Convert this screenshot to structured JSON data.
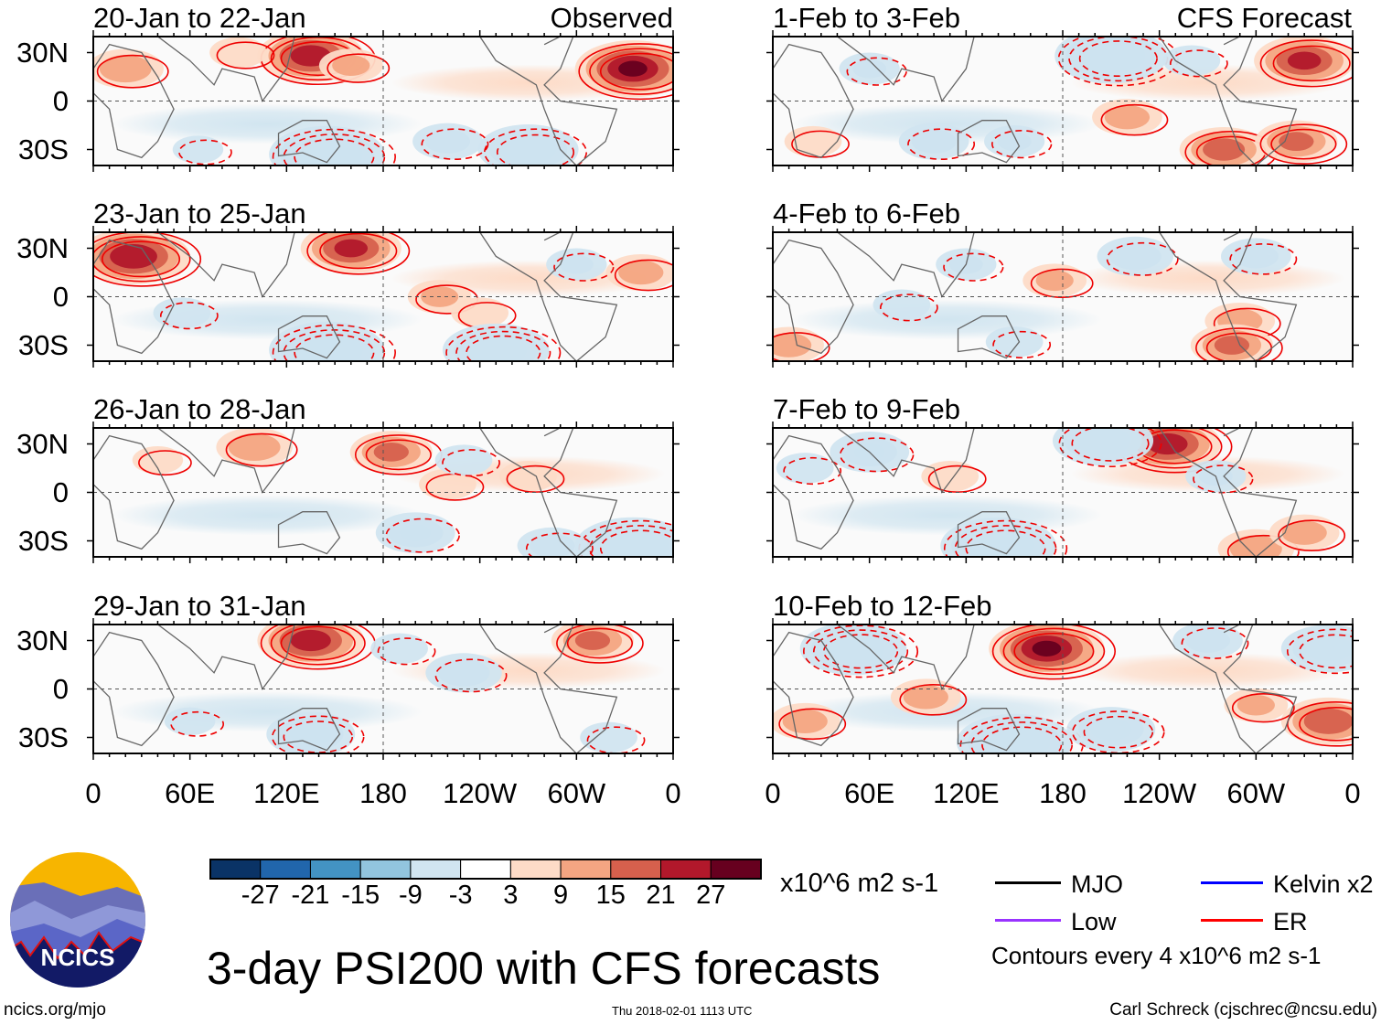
{
  "columns": [
    {
      "label": "Observed"
    },
    {
      "label": "CFS Forecast"
    }
  ],
  "panels": [
    {
      "title": "20-Jan to 22-Jan",
      "col": 0,
      "row": 0,
      "anomalies": [
        [
          20,
          20,
          14
        ],
        [
          135,
          28,
          24
        ],
        [
          160,
          22,
          10
        ],
        [
          270,
          -30,
          -22
        ],
        [
          145,
          -33,
          -27
        ],
        [
          335,
          20,
          27
        ],
        [
          220,
          -25,
          -12
        ],
        [
          65,
          -30,
          -6
        ],
        [
          90,
          30,
          8
        ]
      ]
    },
    {
      "title": "23-Jan to 25-Jan",
      "col": 0,
      "row": 1,
      "anomalies": [
        [
          25,
          25,
          26
        ],
        [
          160,
          30,
          22
        ],
        [
          215,
          0,
          10
        ],
        [
          240,
          -10,
          8
        ],
        [
          340,
          15,
          12
        ],
        [
          145,
          -33,
          -27
        ],
        [
          250,
          -33,
          -24
        ],
        [
          55,
          -10,
          -8
        ],
        [
          300,
          20,
          -9
        ]
      ]
    },
    {
      "title": "26-Jan to 28-Jan",
      "col": 0,
      "row": 2,
      "anomalies": [
        [
          100,
          28,
          14
        ],
        [
          185,
          25,
          16
        ],
        [
          220,
          5,
          8
        ],
        [
          335,
          -33,
          -27
        ],
        [
          200,
          -25,
          -15
        ],
        [
          285,
          -33,
          -12
        ],
        [
          270,
          10,
          8
        ],
        [
          40,
          20,
          6
        ],
        [
          230,
          20,
          -8
        ]
      ]
    },
    {
      "title": "29-Jan to 31-Jan",
      "col": 0,
      "row": 3,
      "anomalies": [
        [
          135,
          30,
          24
        ],
        [
          310,
          30,
          16
        ],
        [
          230,
          10,
          -14
        ],
        [
          135,
          -28,
          -18
        ],
        [
          190,
          25,
          -8
        ],
        [
          60,
          -20,
          -6
        ],
        [
          320,
          -30,
          -8
        ]
      ]
    },
    {
      "title": "1-Feb to 3-Feb",
      "col": 1,
      "row": 0,
      "anomalies": [
        [
          210,
          28,
          -26
        ],
        [
          330,
          25,
          22
        ],
        [
          220,
          -10,
          12
        ],
        [
          280,
          -30,
          18
        ],
        [
          325,
          -25,
          16
        ],
        [
          100,
          -25,
          -12
        ],
        [
          150,
          -25,
          -9
        ],
        [
          60,
          20,
          -9
        ],
        [
          260,
          25,
          -8
        ],
        [
          25,
          -25,
          8
        ]
      ]
    },
    {
      "title": "4-Feb to 6-Feb",
      "col": 1,
      "row": 1,
      "anomalies": [
        [
          225,
          25,
          -14
        ],
        [
          300,
          25,
          -12
        ],
        [
          120,
          20,
          -9
        ],
        [
          175,
          10,
          10
        ],
        [
          290,
          -15,
          12
        ],
        [
          285,
          -30,
          16
        ],
        [
          10,
          -30,
          12
        ],
        [
          80,
          -5,
          -8
        ],
        [
          150,
          -28,
          -8
        ]
      ]
    },
    {
      "title": "7-Feb to 9-Feb",
      "col": 1,
      "row": 2,
      "anomalies": [
        [
          245,
          30,
          24
        ],
        [
          205,
          32,
          -22
        ],
        [
          60,
          25,
          -15
        ],
        [
          140,
          -33,
          -27
        ],
        [
          300,
          -35,
          14
        ],
        [
          330,
          -25,
          12
        ],
        [
          20,
          15,
          -8
        ],
        [
          110,
          10,
          8
        ],
        [
          275,
          10,
          -9
        ]
      ]
    },
    {
      "title": "10-Feb to 12-Feb",
      "col": 1,
      "row": 3,
      "anomalies": [
        [
          170,
          25,
          27
        ],
        [
          50,
          25,
          -24
        ],
        [
          150,
          -33,
          -27
        ],
        [
          210,
          -25,
          -18
        ],
        [
          345,
          25,
          -20
        ],
        [
          345,
          -20,
          20
        ],
        [
          20,
          -20,
          12
        ],
        [
          95,
          -5,
          12
        ],
        [
          300,
          -10,
          10
        ],
        [
          270,
          30,
          -12
        ]
      ]
    }
  ],
  "lat_labels": [
    "30N",
    "0",
    "30S"
  ],
  "lon_labels": [
    "0",
    "60E",
    "120E",
    "180",
    "120W",
    "60W",
    "0"
  ],
  "colorbar": {
    "colors": [
      "#0a3366",
      "#2166ac",
      "#4393c3",
      "#92c5de",
      "#d1e5f0",
      "#ffffff",
      "#fddbc7",
      "#f4a582",
      "#d6604d",
      "#b2182b",
      "#67001f"
    ],
    "ticks": [
      "-27",
      "-21",
      "-15",
      "-9",
      "-3",
      "3",
      "9",
      "15",
      "21",
      "27"
    ],
    "levels": [
      -27,
      -21,
      -15,
      -9,
      -3,
      3,
      9,
      15,
      21,
      27
    ],
    "units": "x10^6 m2 s-1"
  },
  "legend": {
    "items": [
      {
        "label": "MJO",
        "color": "#000000"
      },
      {
        "label": "Kelvin x2",
        "color": "#0000ff"
      },
      {
        "label": "Low",
        "color": "#9933ff"
      },
      {
        "label": "ER",
        "color": "#ff0000"
      }
    ],
    "note": "Contours every 4 x10^6 m2 s-1"
  },
  "title": "3-day PSI200 with CFS forecasts",
  "logo_text": "NCICS",
  "footer": {
    "left": "ncics.org/mjo",
    "center": "Thu 2018-02-01 1113 UTC",
    "right": "Carl Schreck (cjschrec@ncsu.edu)"
  }
}
